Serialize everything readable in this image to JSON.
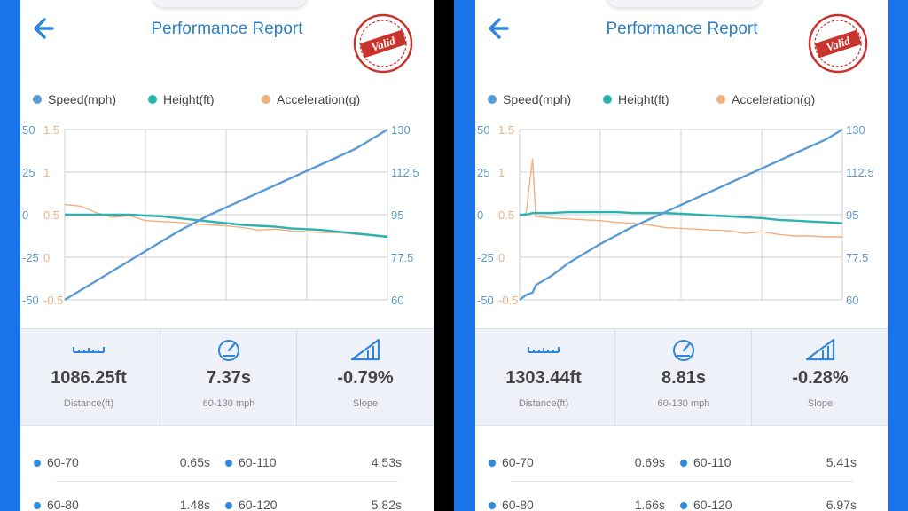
{
  "colors": {
    "speed": "#5b9bd5",
    "height": "#2bb3b1",
    "acceleration": "#f0b080",
    "title": "#2c7fc3",
    "grid": "#d0d0d0"
  },
  "screens": [
    {
      "title": "Performance Report",
      "stamp_text": "Valid",
      "legend": [
        "Speed(mph)",
        "Height(ft)",
        "Acceleration(g)"
      ],
      "stats": [
        {
          "icon": "ruler-icon",
          "value": "1086.25ft",
          "label": "Distance(ft)"
        },
        {
          "icon": "speedometer-icon",
          "value": "7.37s",
          "label": "60-130 mph"
        },
        {
          "icon": "slope-icon",
          "value": "-0.79%",
          "label": "Slope"
        }
      ],
      "splits": [
        {
          "l1": "60-70",
          "v1": "0.65s",
          "l2": "60-110",
          "v2": "4.53s"
        },
        {
          "l1": "60-80",
          "v1": "1.48s",
          "l2": "60-120",
          "v2": "5.82s"
        }
      ],
      "chart_data": {
        "type": "line",
        "axes": {
          "height_ticks": [
            "50",
            "25",
            "0",
            "-25",
            "-50"
          ],
          "accel_ticks": [
            "1.5",
            "1",
            "0.5",
            "0",
            "-0.5"
          ],
          "speed_ticks": [
            "130",
            "112.5",
            "95",
            "77.5",
            "60"
          ],
          "height_range": [
            -50,
            50
          ],
          "accel_range": [
            -0.5,
            1.5
          ],
          "speed_range": [
            60,
            130
          ]
        },
        "grid": true,
        "legend_position": "top",
        "t": [
          0,
          0.05,
          0.1,
          0.15,
          0.2,
          0.25,
          0.3,
          0.35,
          0.4,
          0.45,
          0.5,
          0.55,
          0.6,
          0.65,
          0.7,
          0.75,
          0.8,
          0.85,
          0.9,
          0.95,
          1
        ],
        "series": [
          {
            "name": "Speed(mph)",
            "axis": "speed",
            "values": [
              60,
              64,
              68,
              72,
              76,
              80,
              84,
              88,
              91.5,
              95,
              98,
              101,
              104,
              107,
              110,
              113,
              116,
              119,
              122,
              126,
              130
            ]
          },
          {
            "name": "Height(ft)",
            "axis": "height",
            "values": [
              0,
              0,
              0,
              0,
              0,
              -0.5,
              -1,
              -2,
              -3,
              -4,
              -5,
              -6,
              -6.5,
              -7,
              -8,
              -8.5,
              -9,
              -10,
              -11,
              -12,
              -13
            ]
          },
          {
            "name": "Acceleration(g)",
            "axis": "accel",
            "values": [
              0.62,
              0.6,
              0.52,
              0.47,
              0.49,
              0.43,
              0.42,
              0.41,
              0.39,
              0.38,
              0.37,
              0.35,
              0.32,
              0.33,
              0.31,
              0.3,
              0.29,
              0.29,
              0.27,
              0.26,
              0.25
            ]
          }
        ]
      }
    },
    {
      "title": "Performance Report",
      "stamp_text": "Valid",
      "legend": [
        "Speed(mph)",
        "Height(ft)",
        "Acceleration(g)"
      ],
      "stats": [
        {
          "icon": "ruler-icon",
          "value": "1303.44ft",
          "label": "Distance(ft)"
        },
        {
          "icon": "speedometer-icon",
          "value": "8.81s",
          "label": "60-130 mph"
        },
        {
          "icon": "slope-icon",
          "value": "-0.28%",
          "label": "Slope"
        }
      ],
      "splits": [
        {
          "l1": "60-70",
          "v1": "0.69s",
          "l2": "60-110",
          "v2": "5.41s"
        },
        {
          "l1": "60-80",
          "v1": "1.66s",
          "l2": "60-120",
          "v2": "6.97s"
        }
      ],
      "chart_data": {
        "type": "line",
        "axes": {
          "height_ticks": [
            "50",
            "25",
            "0",
            "-25",
            "-50"
          ],
          "accel_ticks": [
            "1.5",
            "1",
            "0.5",
            "0",
            "-0.5"
          ],
          "speed_ticks": [
            "130",
            "112.5",
            "95",
            "77.5",
            "60"
          ],
          "height_range": [
            -50,
            50
          ],
          "accel_range": [
            -0.5,
            1.5
          ],
          "speed_range": [
            60,
            130
          ]
        },
        "grid": true,
        "legend_position": "top",
        "t": [
          0,
          0.02,
          0.04,
          0.05,
          0.1,
          0.15,
          0.2,
          0.25,
          0.3,
          0.35,
          0.4,
          0.45,
          0.5,
          0.55,
          0.6,
          0.65,
          0.7,
          0.75,
          0.8,
          0.85,
          0.9,
          0.95,
          1
        ],
        "series": [
          {
            "name": "Speed(mph)",
            "axis": "speed",
            "values": [
              60,
              62,
              63,
              66,
              70,
              75,
              79,
              83,
              86.5,
              90,
              93,
              96,
              99,
              102,
              105,
              108,
              111,
              114,
              117,
              120,
              123,
              126,
              130
            ]
          },
          {
            "name": "Height(ft)",
            "axis": "height",
            "values": [
              0,
              0,
              1,
              1,
              1,
              1.5,
              1.5,
              1.5,
              1.5,
              1,
              1,
              1,
              0.5,
              0,
              -0.5,
              -1,
              -1.5,
              -2,
              -3,
              -3.5,
              -4,
              -4.5,
              -5
            ]
          },
          {
            "name": "Acceleration(g)",
            "axis": "accel",
            "values": [
              0.48,
              0.52,
              1.15,
              0.48,
              0.46,
              0.45,
              0.44,
              0.43,
              0.41,
              0.4,
              0.38,
              0.35,
              0.34,
              0.33,
              0.32,
              0.31,
              0.28,
              0.3,
              0.27,
              0.25,
              0.25,
              0.24,
              0.24
            ]
          }
        ]
      }
    }
  ]
}
